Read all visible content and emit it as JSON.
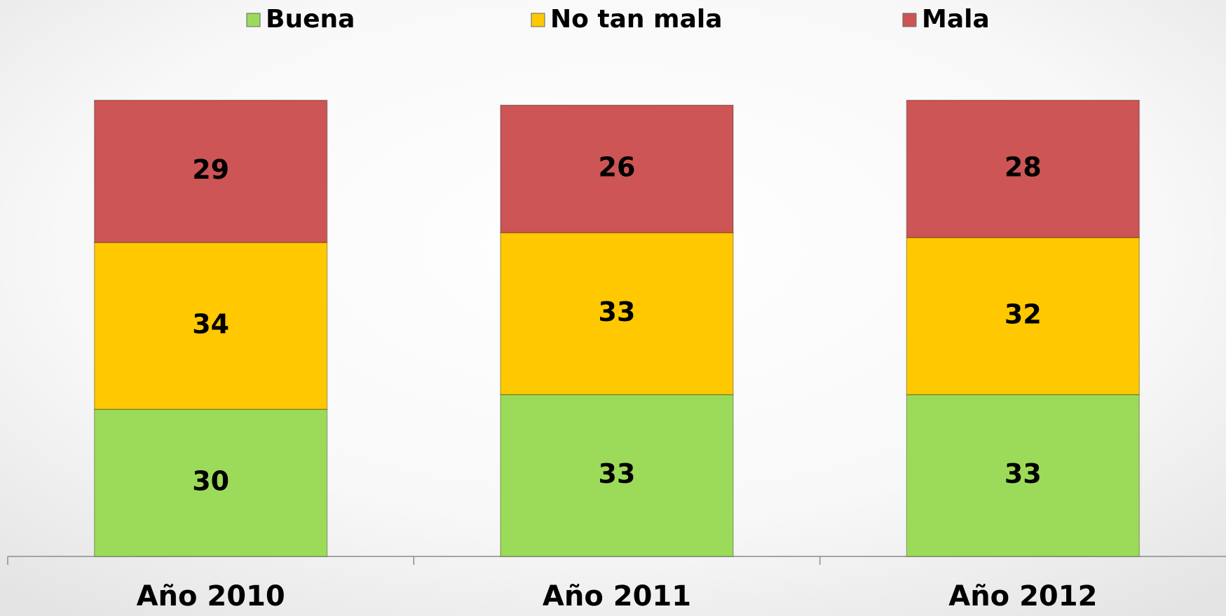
{
  "chart_data": {
    "type": "stacked_bar",
    "categories": [
      "Año 2010",
      "Año 2011",
      "Año 2012"
    ],
    "series": [
      {
        "name": "Buena",
        "color": "#9cdb5a",
        "values": [
          30,
          33,
          33
        ]
      },
      {
        "name": "No tan mala",
        "color": "#ffc800",
        "values": [
          34,
          33,
          32
        ]
      },
      {
        "name": "Mala",
        "color": "#cd5555",
        "values": [
          29,
          26,
          28
        ]
      }
    ],
    "legend": "top"
  }
}
